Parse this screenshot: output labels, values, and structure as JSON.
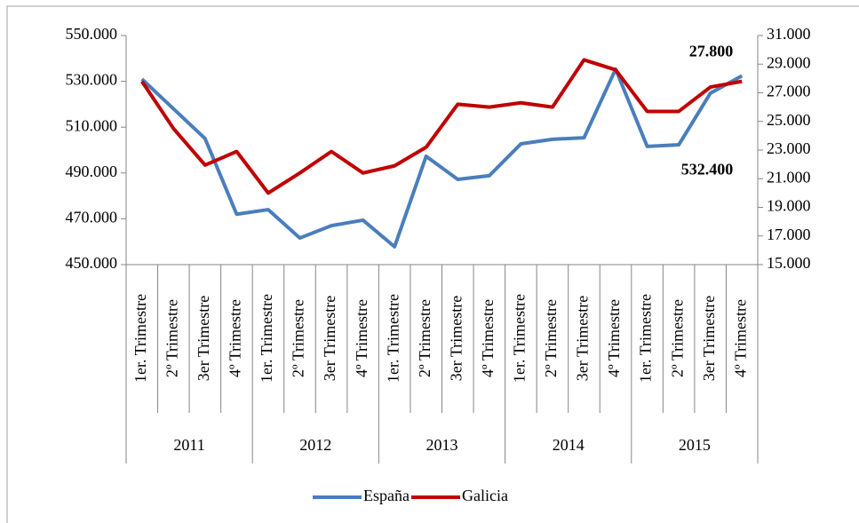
{
  "chart_data": {
    "type": "line",
    "categories": [
      "1er. Trimestre",
      "2º Trimestre",
      "3er Trimestre",
      "4º Trimestre",
      "1er. Trimestre",
      "2º Trimestre",
      "3er Trimestre",
      "4º Trimestre",
      "1er. Trimestre",
      "2º Trimestre",
      "3er Trimestre",
      "4º Trimestre",
      "1er. Trimestre",
      "2º Trimestre",
      "3er Trimestre",
      "4º Trimestre",
      "1er. Trimestre",
      "2º Trimestre",
      "3er Trimestre",
      "4º Trimestre"
    ],
    "years": [
      "2011",
      "2012",
      "2013",
      "2014",
      "2015"
    ],
    "series": [
      {
        "name": "España",
        "color": "#4a7ebb",
        "axis": "y",
        "values": [
          531000,
          518000,
          505000,
          472000,
          474000,
          461600,
          467000,
          469400,
          457800,
          497300,
          487200,
          488800,
          502700,
          504700,
          505400,
          535300,
          501600,
          502300,
          524800,
          532400
        ],
        "value_labels": [
          null,
          null,
          null,
          null,
          null,
          null,
          null,
          null,
          null,
          null,
          null,
          null,
          null,
          null,
          null,
          null,
          null,
          null,
          null,
          "532.400"
        ]
      },
      {
        "name": "Galicia",
        "color": "#c00000",
        "axis": "y2",
        "values": [
          27800,
          24500,
          21950,
          22900,
          20000,
          21400,
          22900,
          21400,
          21900,
          23200,
          26200,
          26000,
          26300,
          26000,
          29300,
          28600,
          25700,
          25700,
          27400,
          27800
        ],
        "value_labels": [
          null,
          null,
          null,
          null,
          null,
          null,
          null,
          null,
          null,
          null,
          null,
          null,
          null,
          null,
          null,
          null,
          null,
          null,
          null,
          "27.800"
        ]
      }
    ],
    "ylim": [
      450000,
      550000
    ],
    "yticks": [
      {
        "value": 450000,
        "label": "450.000"
      },
      {
        "value": 470000,
        "label": "470.000"
      },
      {
        "value": 490000,
        "label": "490.000"
      },
      {
        "value": 510000,
        "label": "510.000"
      },
      {
        "value": 530000,
        "label": "530.000"
      },
      {
        "value": 550000,
        "label": "550.000"
      }
    ],
    "y2lim": [
      15000,
      31000
    ],
    "y2ticks": [
      {
        "value": 15000,
        "label": "15.000"
      },
      {
        "value": 17000,
        "label": "17.000"
      },
      {
        "value": 19000,
        "label": "19.000"
      },
      {
        "value": 21000,
        "label": "21.000"
      },
      {
        "value": 23000,
        "label": "23.000"
      },
      {
        "value": 25000,
        "label": "25.000"
      },
      {
        "value": 27000,
        "label": "27.000"
      },
      {
        "value": 29000,
        "label": "29.000"
      },
      {
        "value": 31000,
        "label": "31.000"
      }
    ],
    "legend": "bottom",
    "grid": false
  }
}
